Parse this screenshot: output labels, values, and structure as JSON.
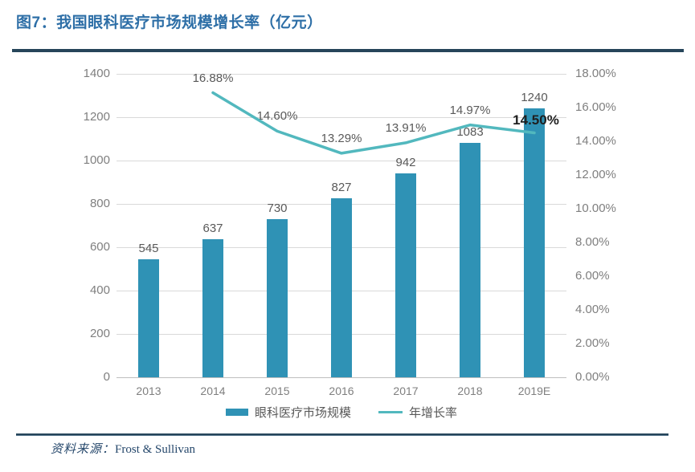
{
  "header": {
    "title": "图7：我国眼科医疗市场规模增长率（亿元）"
  },
  "chart_data": {
    "type": "bar",
    "subtype": "combo-bar-line-dual-axis",
    "categories": [
      "2013",
      "2014",
      "2015",
      "2016",
      "2017",
      "2018",
      "2019E"
    ],
    "series": [
      {
        "name": "眼科医疗市场规模",
        "type": "bar",
        "axis": "left",
        "values": [
          545,
          637,
          730,
          827,
          942,
          1083,
          1240
        ],
        "value_labels": [
          "545",
          "637",
          "730",
          "827",
          "942",
          "1083",
          "1240"
        ],
        "color": "#2F92B5"
      },
      {
        "name": "年增长率",
        "type": "line",
        "axis": "right",
        "values": [
          null,
          16.88,
          14.6,
          13.29,
          13.91,
          14.97,
          14.5
        ],
        "value_labels": [
          "",
          "16.88%",
          "14.60%",
          "13.29%",
          "13.91%",
          "14.97%",
          "14.50%"
        ],
        "color": "#52B8BE"
      }
    ],
    "left_axis": {
      "min": 0,
      "max": 1400,
      "step": 200,
      "ticks": [
        "1400",
        "1200",
        "1000",
        "800",
        "600",
        "400",
        "200",
        "0"
      ]
    },
    "right_axis": {
      "min": 0,
      "max": 18,
      "step": 2,
      "ticks": [
        "18.00%",
        "16.00%",
        "14.00%",
        "12.00%",
        "10.00%",
        "8.00%",
        "6.00%",
        "4.00%",
        "2.00%",
        "0.00%"
      ]
    },
    "grid": true,
    "legend_position": "bottom"
  },
  "footer": {
    "source_label": "资料来源：",
    "source_value": "Frost & Sullivan"
  },
  "colors": {
    "bar": "#2F92B5",
    "line": "#52B8BE",
    "title": "#2E6FA7",
    "rule": "#26455A",
    "grid": "#d9d9d9",
    "axis_text": "#7f7f7f",
    "data_label": "#595959"
  }
}
